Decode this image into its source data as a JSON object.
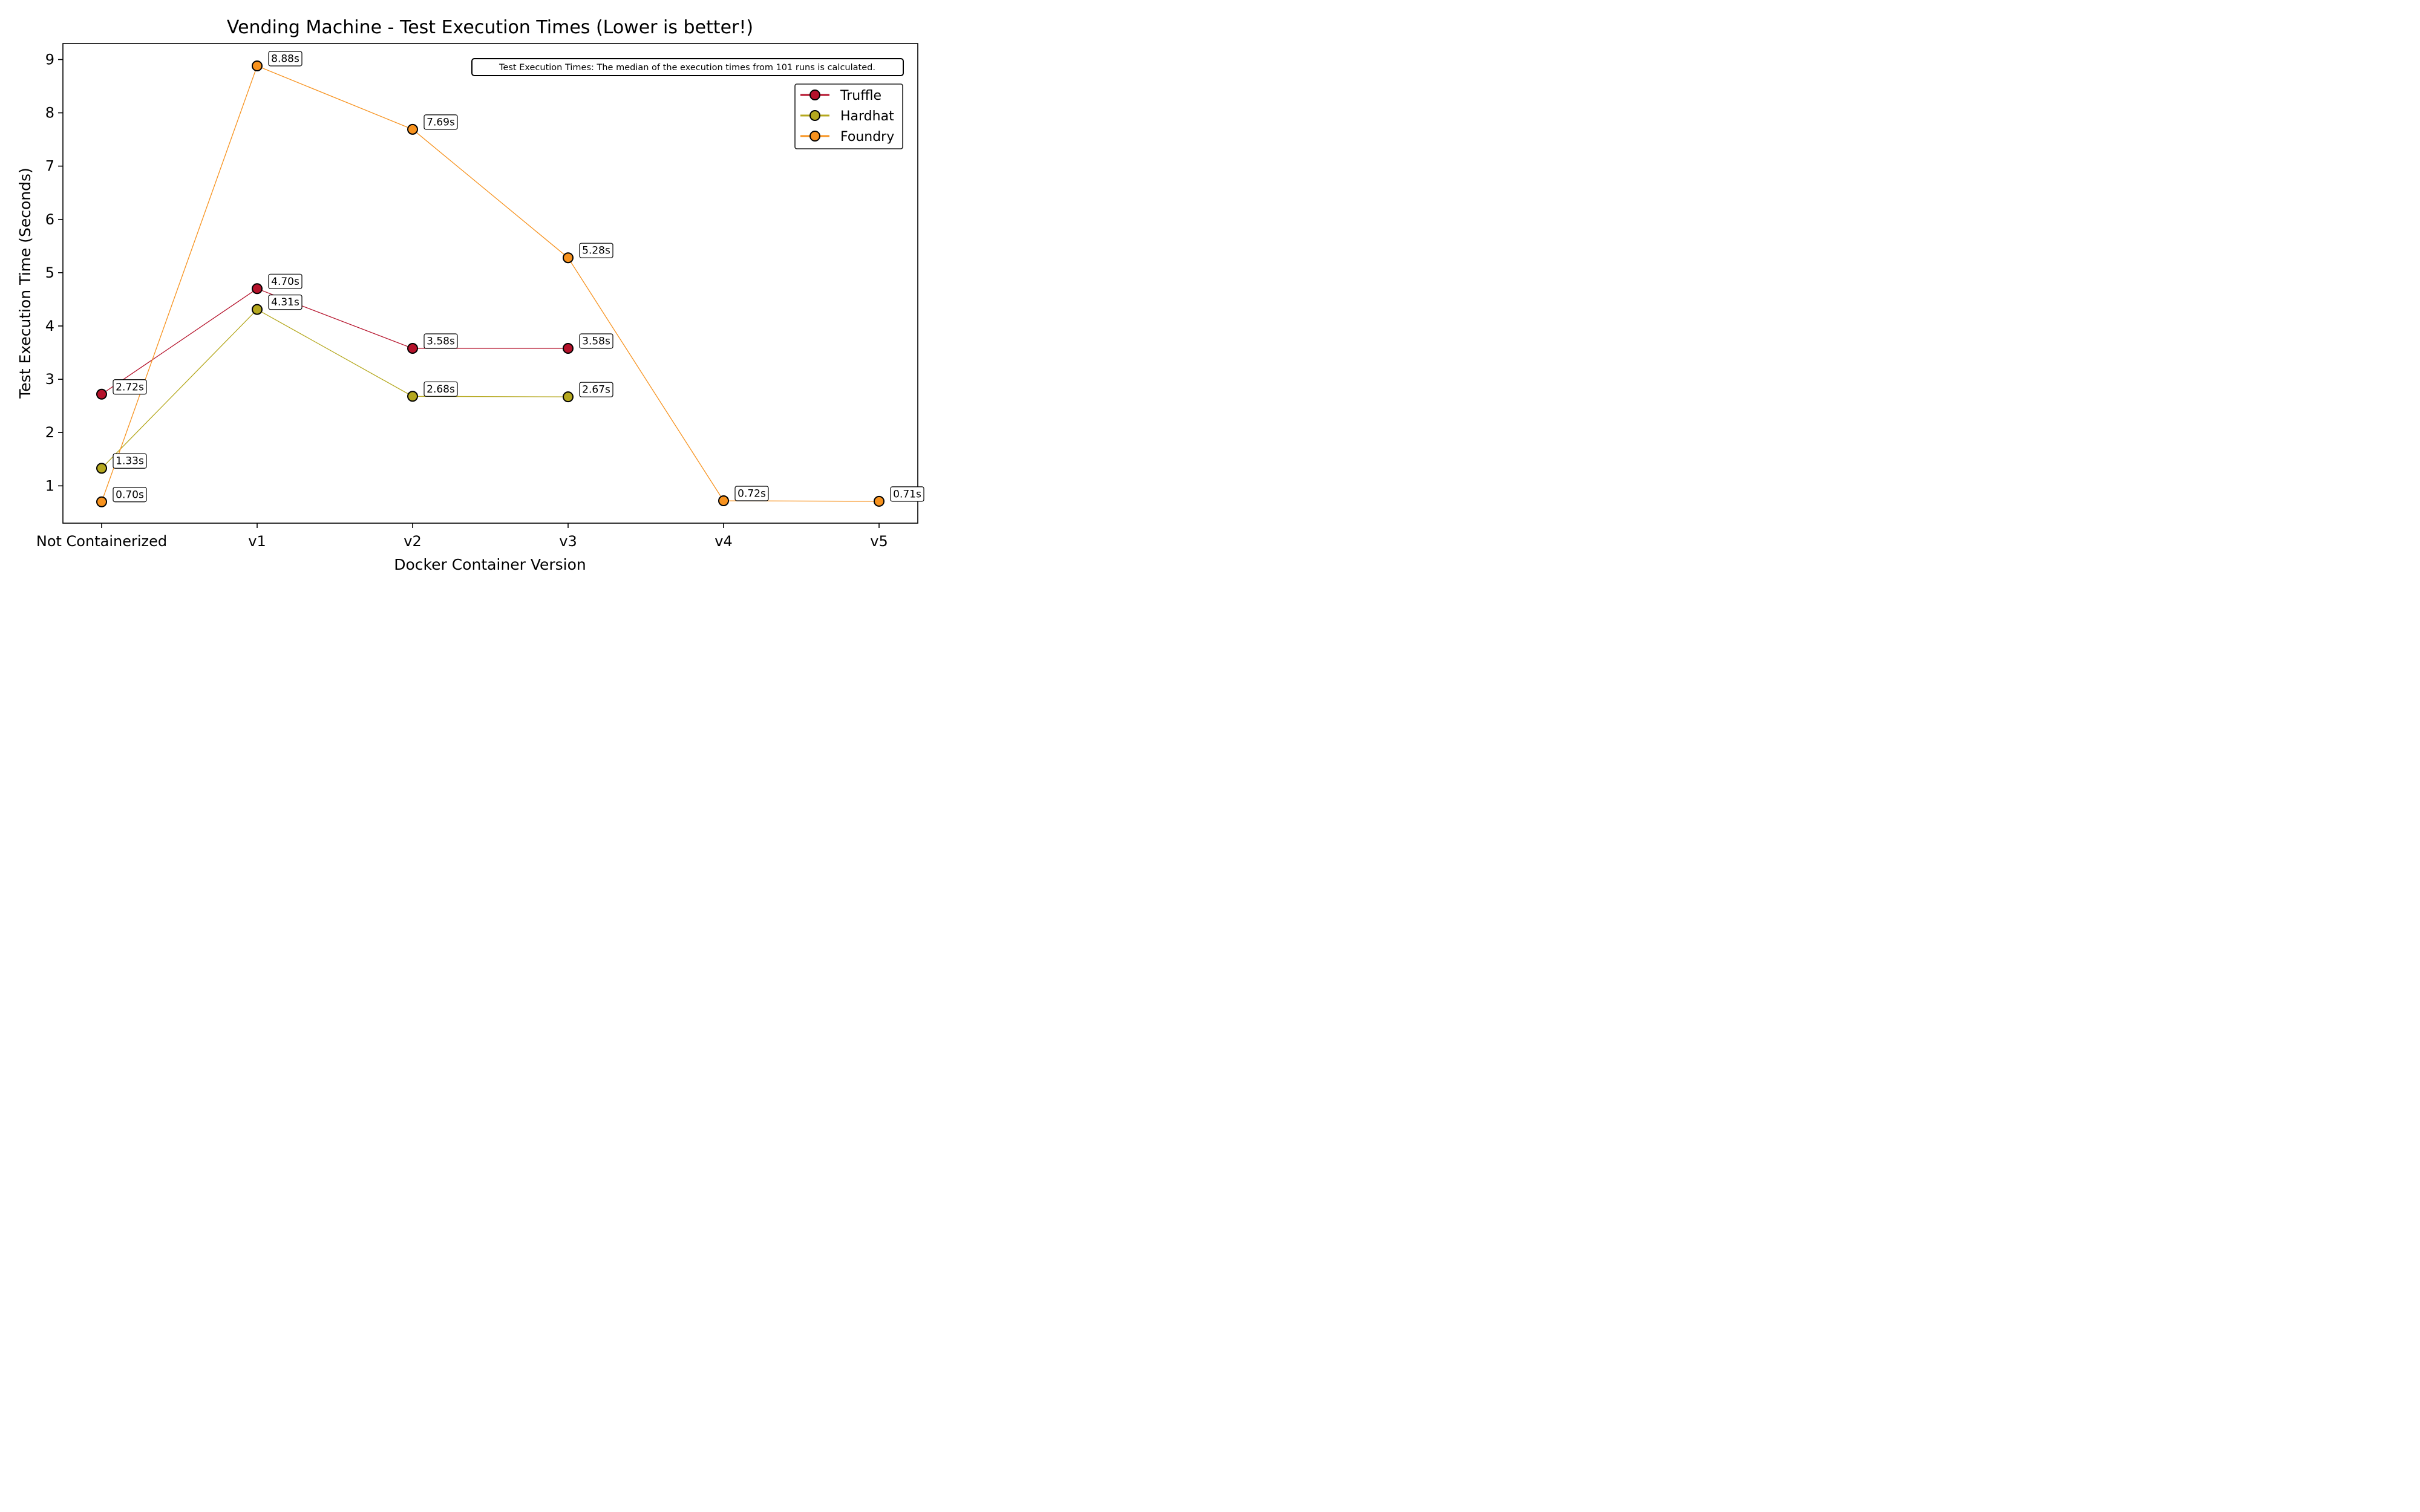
{
  "chart_data": {
    "type": "line",
    "title": "Vending Machine - Test Execution Times (Lower is better!)",
    "xlabel": "Docker Container Version",
    "ylabel": "Test Execution Time (Seconds)",
    "categories": [
      "Not Containerized",
      "v1",
      "v2",
      "v3",
      "v4",
      "v5"
    ],
    "ylim": [
      0.3,
      9.3
    ],
    "yticks": [
      1,
      2,
      3,
      4,
      5,
      6,
      7,
      8,
      9
    ],
    "grid": false,
    "legend_placement": "top-right",
    "annotation": "Test Execution Times: The median of the execution times from 101 runs is calculated.",
    "series": [
      {
        "name": "Truffle",
        "color": "#b5122b",
        "values": [
          2.72,
          4.7,
          3.58,
          3.58,
          null,
          null
        ],
        "labels": [
          "2.72s",
          "4.70s",
          "3.58s",
          "3.58s",
          null,
          null
        ]
      },
      {
        "name": "Hardhat",
        "color": "#b5a81e",
        "values": [
          1.33,
          4.31,
          2.68,
          2.67,
          null,
          null
        ],
        "labels": [
          "1.33s",
          "4.31s",
          "2.68s",
          "2.67s",
          null,
          null
        ]
      },
      {
        "name": "Foundry",
        "color": "#f7921e",
        "values": [
          0.7,
          8.88,
          7.69,
          5.28,
          0.72,
          0.71
        ],
        "labels": [
          "0.70s",
          "8.88s",
          "7.69s",
          "5.28s",
          "0.72s",
          "0.71s"
        ]
      }
    ]
  }
}
